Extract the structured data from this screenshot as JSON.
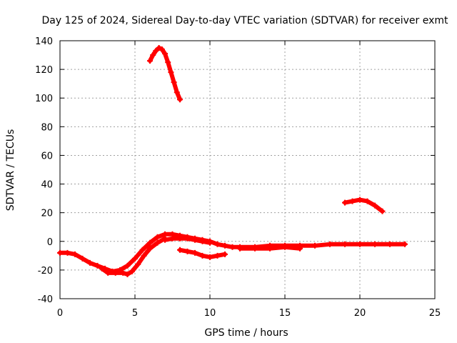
{
  "chart_data": {
    "type": "scatter",
    "title": "Day 125 of 2024, Sidereal Day-to-day VTEC variation (SDTVAR) for receiver exmt",
    "xlabel": "GPS time / hours",
    "ylabel": "SDTVAR / TECUs",
    "xlim": [
      0,
      25
    ],
    "ylim": [
      -40,
      140
    ],
    "xticks": [
      0,
      5,
      10,
      15,
      20,
      25
    ],
    "yticks": [
      -40,
      -20,
      0,
      20,
      40,
      60,
      80,
      100,
      120,
      140
    ],
    "grid": true,
    "marker": "plus",
    "color": "#ff0000",
    "series": [
      {
        "name": "main-track",
        "x": [
          0.0,
          0.5,
          1.0,
          1.5,
          2.0,
          2.5,
          3.0,
          3.5,
          4.0,
          4.5,
          5.0,
          5.5,
          6.0,
          6.5,
          7.0,
          7.5,
          8.0,
          8.5,
          9.0,
          9.5,
          10.0,
          10.5,
          11.0,
          11.5,
          12.0,
          13.0,
          14.0,
          15.0,
          16.0,
          17.0,
          18.0,
          19.0,
          20.0,
          21.0,
          22.0,
          23.0
        ],
        "y": [
          -8,
          -8,
          -9,
          -12,
          -15,
          -17,
          -19,
          -21,
          -20,
          -17,
          -12,
          -6,
          -1,
          3,
          5,
          5,
          4,
          3,
          2,
          1,
          0,
          -2,
          -3,
          -4,
          -4,
          -4,
          -3,
          -3,
          -3,
          -3,
          -2,
          -2,
          -2,
          -2,
          -2,
          -2
        ]
      },
      {
        "name": "lower-branch",
        "x": [
          2.8,
          3.2,
          3.7,
          4.2,
          4.5,
          4.8,
          5.2,
          5.6,
          6.0,
          6.5,
          7.0
        ],
        "y": [
          -19,
          -22,
          -22,
          -22,
          -23,
          -21,
          -16,
          -10,
          -5,
          -1,
          2
        ]
      },
      {
        "name": "upper-band",
        "x": [
          7.0,
          7.5,
          8.0,
          8.5,
          9.0,
          9.5,
          10.0
        ],
        "y": [
          1,
          2,
          2,
          2,
          1,
          0,
          -1
        ]
      },
      {
        "name": "evening-dip",
        "x": [
          8.0,
          8.5,
          9.0,
          9.5,
          10.0,
          10.5,
          11.0
        ],
        "y": [
          -6,
          -7,
          -8,
          -10,
          -11,
          -10,
          -9
        ]
      },
      {
        "name": "secondary-band",
        "x": [
          12.0,
          13.0,
          14.0,
          15.0,
          16.0
        ],
        "y": [
          -5,
          -5,
          -5,
          -4,
          -5
        ]
      },
      {
        "name": "morning-spike",
        "x": [
          6.0,
          6.2,
          6.4,
          6.6,
          6.8,
          7.0,
          7.2,
          7.4,
          7.6,
          7.8,
          8.0
        ],
        "y": [
          126,
          130,
          133,
          135,
          134,
          131,
          125,
          118,
          111,
          104,
          99
        ]
      },
      {
        "name": "evening-arc",
        "x": [
          19.0,
          19.5,
          20.0,
          20.5,
          21.0,
          21.5
        ],
        "y": [
          27,
          28,
          29,
          28,
          25,
          21
        ]
      }
    ]
  }
}
